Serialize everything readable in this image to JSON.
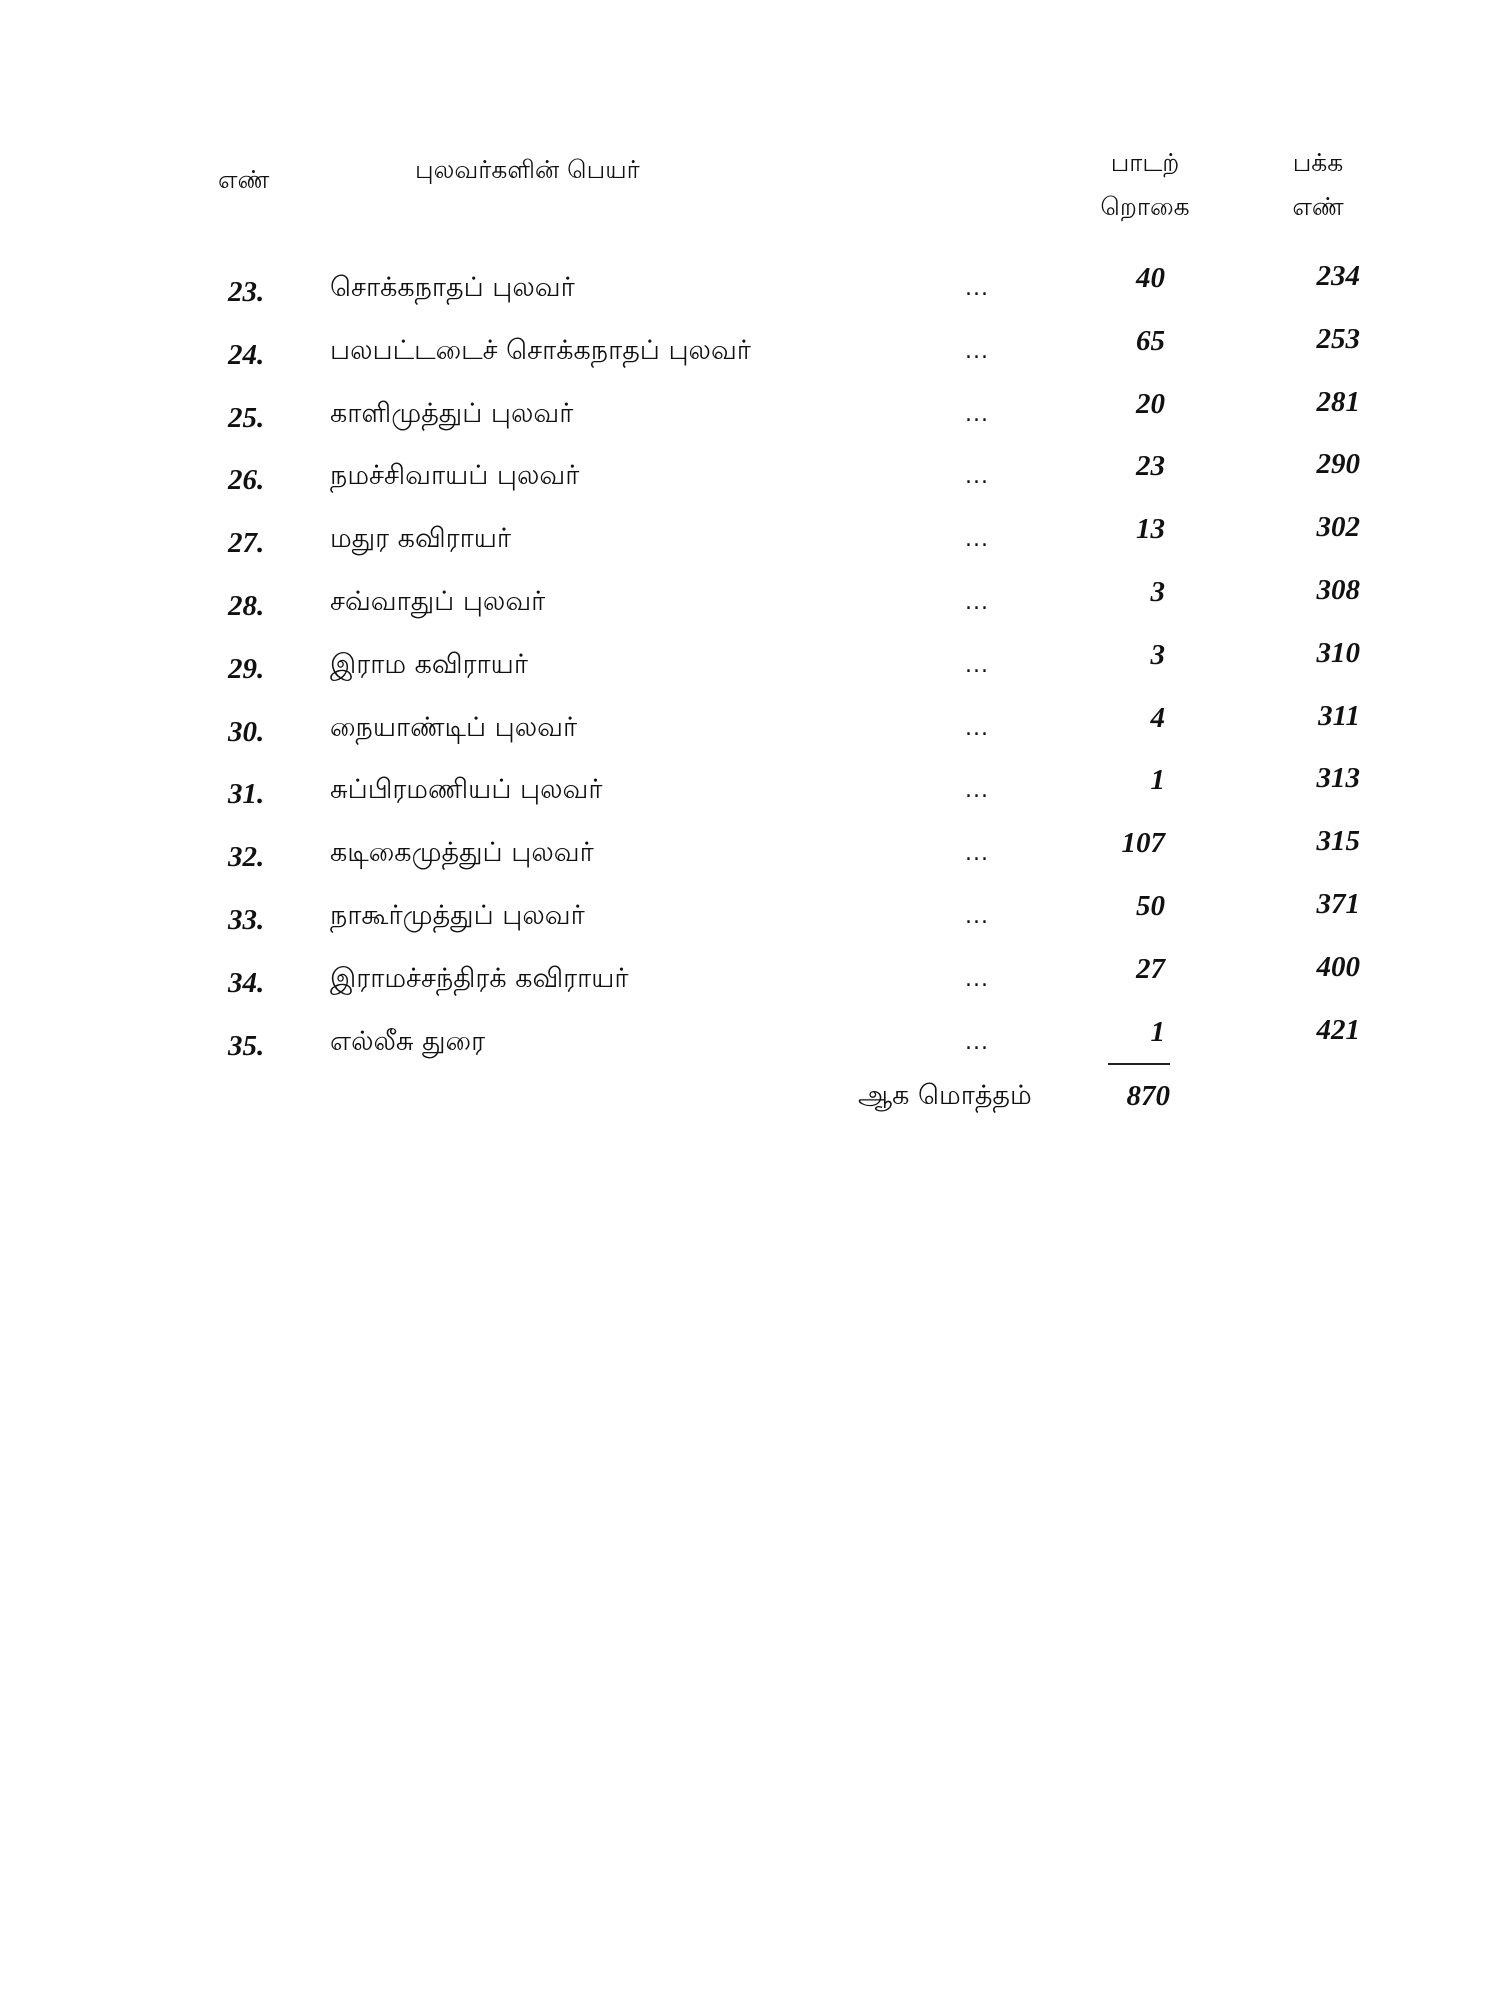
{
  "header": {
    "no": "எண்",
    "name": "புலவர்களின் பெயர்",
    "songs_line1": "பாடற்",
    "songs_line2": "றொகை",
    "page_line1": "பக்க",
    "page_line2": "எண்"
  },
  "rows": [
    {
      "no": "23.",
      "name": "சொக்கநாதப் புலவர்",
      "dots": "...",
      "songs": "40",
      "page": "234"
    },
    {
      "no": "24.",
      "name": "பலபட்டடைச் சொக்கநாதப் புலவர்",
      "dots": "...",
      "songs": "65",
      "page": "253"
    },
    {
      "no": "25.",
      "name": "காளிமுத்துப் புலவர்",
      "dots": "...",
      "songs": "20",
      "page": "281"
    },
    {
      "no": "26.",
      "name": "நமச்சிவாயப் புலவர்",
      "dots": "...",
      "songs": "23",
      "page": "290"
    },
    {
      "no": "27.",
      "name": "மதுர கவிராயர்",
      "dots": "...",
      "songs": "13",
      "page": "302"
    },
    {
      "no": "28.",
      "name": "சவ்வாதுப் புலவர்",
      "dots": "...",
      "songs": "3",
      "page": "308"
    },
    {
      "no": "29.",
      "name": "இராம கவிராயர்",
      "dots": "...",
      "songs": "3",
      "page": "310"
    },
    {
      "no": "30.",
      "name": "நையாண்டிப் புலவர்",
      "dots": "...",
      "songs": "4",
      "page": "311"
    },
    {
      "no": "31.",
      "name": "சுப்பிரமணியப் புலவர்",
      "dots": "...",
      "songs": "1",
      "page": "313"
    },
    {
      "no": "32.",
      "name": "கடிகைமுத்துப் புலவர்",
      "dots": "...",
      "songs": "107",
      "page": "315"
    },
    {
      "no": "33.",
      "name": "நாகூர்முத்துப் புலவர்",
      "dots": "...",
      "songs": "50",
      "page": "371"
    },
    {
      "no": "34.",
      "name": "இராமச்சந்திரக் கவிராயர்",
      "dots": "...",
      "songs": "27",
      "page": "400"
    },
    {
      "no": "35.",
      "name": "எல்லீசு துரை",
      "dots": "...",
      "songs": "1",
      "page": "421"
    }
  ],
  "total": {
    "label": "ஆக மொத்தம்",
    "value": "870"
  }
}
